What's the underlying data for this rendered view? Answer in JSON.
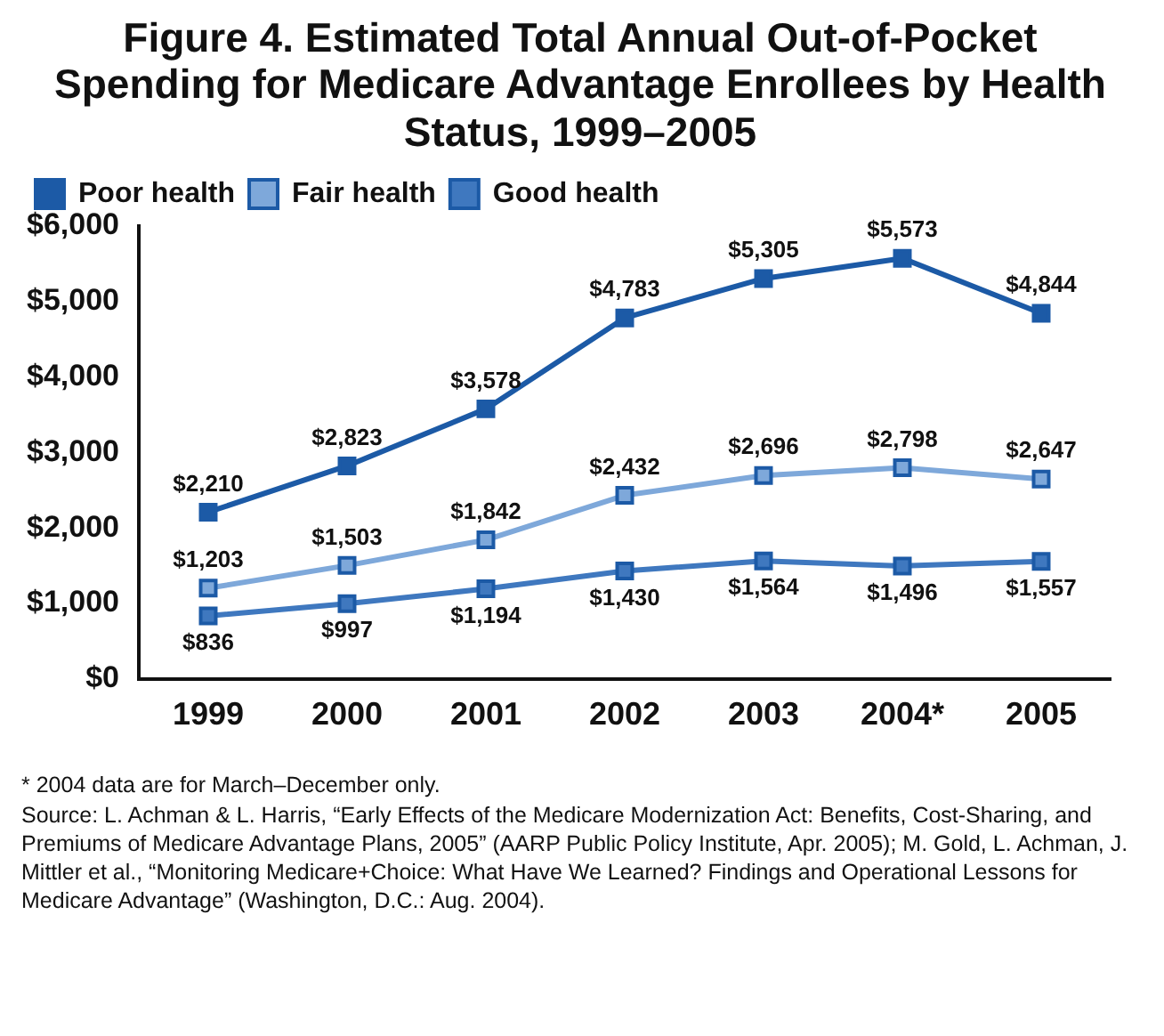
{
  "chart_data": {
    "type": "line",
    "title": "Figure 4. Estimated Total Annual Out-of-Pocket Spending for Medicare Advantage Enrollees by Health Status, 1999–2005",
    "categories": [
      "1999",
      "2000",
      "2001",
      "2002",
      "2003",
      "2004*",
      "2005"
    ],
    "series": [
      {
        "name": "Poor health",
        "color": "#1c5aa6",
        "values": [
          2210,
          2823,
          3578,
          4783,
          5305,
          5573,
          4844
        ],
        "value_labels": [
          "$2,210",
          "$2,823",
          "$3,578",
          "$4,783",
          "$5,305",
          "$5,573",
          "$4,844"
        ]
      },
      {
        "name": "Fair health",
        "color": "#7ea8da",
        "values": [
          1203,
          1503,
          1842,
          2432,
          2696,
          2798,
          2647
        ],
        "value_labels": [
          "$1,203",
          "$1,503",
          "$1,842",
          "$2,432",
          "$2,696",
          "$2,798",
          "$2,647"
        ]
      },
      {
        "name": "Good health",
        "color": "#3f78bf",
        "values": [
          836,
          997,
          1194,
          1430,
          1564,
          1496,
          1557
        ],
        "value_labels": [
          "$836",
          "$997",
          "$1,194",
          "$1,430",
          "$1,564",
          "$1,496",
          "$1,557"
        ]
      }
    ],
    "ylim": [
      0,
      6000
    ],
    "yticks": [
      {
        "value": 0,
        "label": "$0"
      },
      {
        "value": 1000,
        "label": "$1,000"
      },
      {
        "value": 2000,
        "label": "$2,000"
      },
      {
        "value": 3000,
        "label": "$3,000"
      },
      {
        "value": 4000,
        "label": "$4,000"
      },
      {
        "value": 5000,
        "label": "$5,000"
      },
      {
        "value": 6000,
        "label": "$6,000"
      }
    ],
    "grid": false,
    "legend": "top left",
    "marker": "square",
    "line_style": "solid",
    "annotations": [
      "* 2004 data are for March–December only.",
      "Source: L. Achman & L. Harris, “Early Effects of the Medicare Modernization Act: Benefits, Cost-Sharing, and Premiums of Medicare Advantage Plans, 2005” (AARP Public Policy Institute, Apr. 2005); M. Gold, L. Achman, J. Mittler et al., “Monitoring Medicare+Choice: What Have We Learned? Findings and Operational Lessons for Medicare Advantage” (Washington, D.C.: Aug. 2004)."
    ]
  }
}
